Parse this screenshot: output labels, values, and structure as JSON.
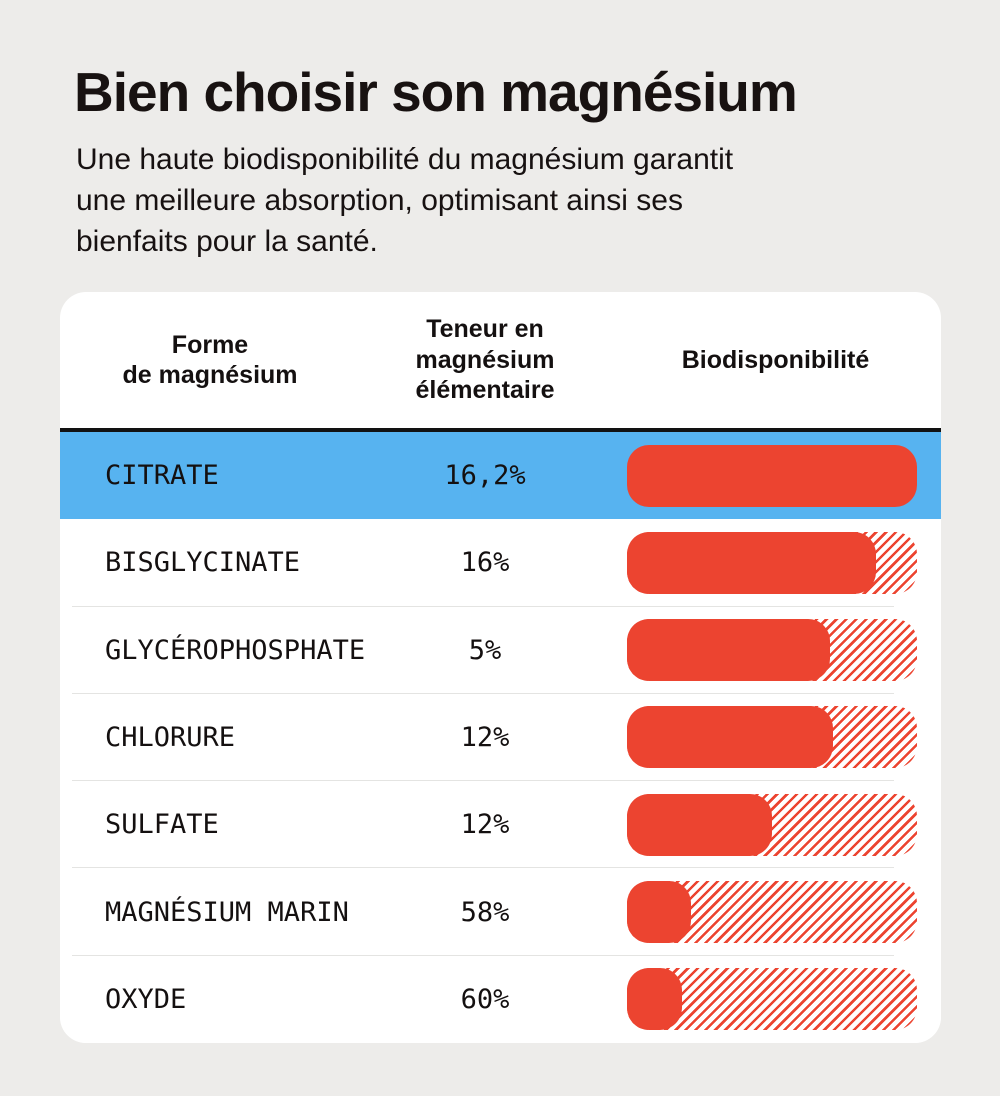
{
  "colors": {
    "background": "#EDECEA",
    "card": "#FFFFFF",
    "accent_red": "#EC4430",
    "highlight_blue": "#57B3F0",
    "divider": "#E4E4E2",
    "text": "#1A1414",
    "header_rule": "#121212"
  },
  "header": {
    "title": "Bien choisir son magnésium",
    "subtitle": "Une haute biodisponibilité du magnésium garantit\nune meilleure absorption, optimisant ainsi ses\nbienfaits pour la santé."
  },
  "table": {
    "columns": [
      "Forme\nde magnésium",
      "Teneur en\nmagnésium\nélémentaire",
      "Biodisponibilité"
    ]
  },
  "chart_data": {
    "type": "table",
    "title": "Bien choisir son magnésium",
    "columns": [
      "Forme de magnésium",
      "Teneur en magnésium élémentaire",
      "Biodisponibilité"
    ],
    "legend_position": "none",
    "bar_axis_range": [
      0,
      100
    ],
    "rows": [
      {
        "forme": "CITRATE",
        "teneur": "16,2%",
        "bio_bar_percent": 100,
        "highlighted": true
      },
      {
        "forme": "BISGLYCINATE",
        "teneur": "16%",
        "bio_bar_percent": 86,
        "highlighted": false
      },
      {
        "forme": "GLYCÉROPHOSPHATE",
        "teneur": "5%",
        "bio_bar_percent": 70,
        "highlighted": false
      },
      {
        "forme": "CHLORURE",
        "teneur": "12%",
        "bio_bar_percent": 71,
        "highlighted": false
      },
      {
        "forme": "SULFATE",
        "teneur": "12%",
        "bio_bar_percent": 50,
        "highlighted": false
      },
      {
        "forme": "MAGNÉSIUM MARIN",
        "teneur": "58%",
        "bio_bar_percent": 22,
        "highlighted": false
      },
      {
        "forme": "OXYDE",
        "teneur": "60%",
        "bio_bar_percent": 19,
        "highlighted": false
      }
    ]
  }
}
